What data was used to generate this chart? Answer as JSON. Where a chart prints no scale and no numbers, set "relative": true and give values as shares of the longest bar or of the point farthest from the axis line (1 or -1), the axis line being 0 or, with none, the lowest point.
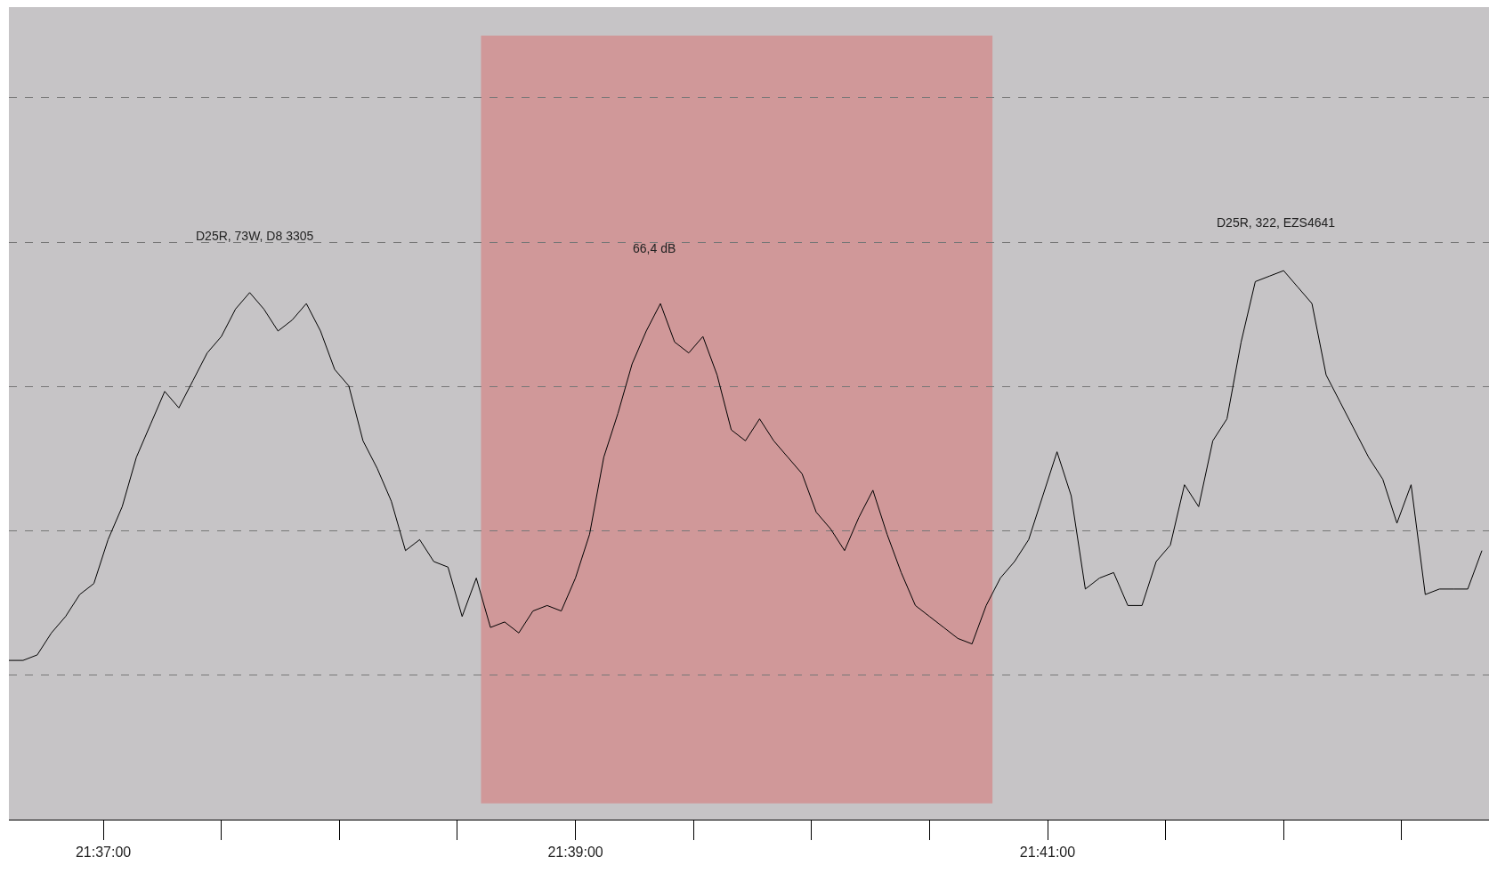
{
  "chart_data": {
    "type": "line",
    "relative": true,
    "grid": "y",
    "line_style": "solid",
    "marker": "none",
    "x": [
      21.61,
      21.611,
      21.612,
      21.613,
      21.614,
      21.615,
      21.616,
      21.617,
      21.618,
      21.619,
      21.62,
      21.621,
      21.622,
      21.623,
      21.624,
      21.625,
      21.626,
      21.627,
      21.628,
      21.629,
      21.63,
      21.631,
      21.632,
      21.633,
      21.634,
      21.635,
      21.636,
      21.637,
      21.638,
      21.639,
      21.64,
      21.641,
      21.642,
      21.643,
      21.644,
      21.645,
      21.646,
      21.647,
      21.648,
      21.649,
      21.65,
      21.651,
      21.652,
      21.653,
      21.654,
      21.655,
      21.656,
      21.657,
      21.658,
      21.659,
      21.66,
      21.661,
      21.662,
      21.663,
      21.664,
      21.665,
      21.666,
      21.667,
      21.668,
      21.669,
      21.67,
      21.671,
      21.672,
      21.673,
      21.674,
      21.675,
      21.676,
      21.677,
      21.678,
      21.679,
      21.68,
      21.681,
      21.682,
      21.683,
      21.684,
      21.685,
      21.686,
      21.687,
      21.688,
      21.689,
      21.69,
      21.691,
      21.692,
      21.693,
      21.694,
      21.695,
      21.696,
      21.697,
      21.698,
      21.699,
      21.7,
      21.701,
      21.702,
      21.703,
      21.704,
      21.705,
      21.706,
      21.707,
      21.708,
      21.709,
      21.71,
      21.711,
      21.712,
      21.713,
      21.714
    ],
    "series": [
      {
        "color": "#000000",
        "values": [
          0.29,
          0.29,
          0.3,
          0.34,
          0.37,
          0.41,
          0.43,
          0.51,
          0.57,
          0.66,
          0.72,
          0.78,
          0.75,
          0.8,
          0.85,
          0.88,
          0.93,
          0.96,
          0.93,
          0.89,
          0.91,
          0.94,
          0.89,
          0.82,
          0.79,
          0.69,
          0.64,
          0.58,
          0.49,
          0.51,
          0.47,
          0.46,
          0.37,
          0.44,
          0.35,
          0.36,
          0.34,
          0.38,
          0.39,
          0.38,
          0.44,
          0.52,
          0.66,
          0.74,
          0.83,
          0.89,
          0.94,
          0.87,
          0.85,
          0.88,
          0.81,
          0.71,
          0.69,
          0.73,
          0.69,
          0.66,
          0.63,
          0.56,
          0.53,
          0.49,
          0.55,
          0.6,
          0.52,
          0.45,
          0.39,
          0.37,
          0.35,
          0.33,
          0.32,
          0.39,
          0.44,
          0.47,
          0.51,
          0.59,
          0.67,
          0.59,
          0.42,
          0.44,
          0.45,
          0.39,
          0.39,
          0.47,
          0.5,
          0.61,
          0.57,
          0.69,
          0.73,
          0.87,
          0.98,
          0.99,
          1.0,
          0.97,
          0.94,
          0.81,
          0.76,
          0.71,
          0.66,
          0.62,
          0.54,
          0.61,
          0.41,
          0.42,
          0.42,
          0.42,
          0.49
        ]
      }
    ],
    "xlim": [
      21.61,
      21.7145
    ],
    "xticks": [
      {
        "value": 21.616667,
        "label": "21:37:00"
      },
      {
        "value": 21.65,
        "label": "21:39:00"
      },
      {
        "value": 21.683333,
        "label": "21:41:00"
      }
    ],
    "tick_labels": "x",
    "bands": [
      {
        "axis": "x",
        "from": 21.643333,
        "to": 21.679444,
        "color": "#d09899"
      }
    ],
    "annotations": [
      "D25R, 73W, D8 3305",
      "66,4 dB",
      "D25R, 322, EZS4641"
    ]
  }
}
